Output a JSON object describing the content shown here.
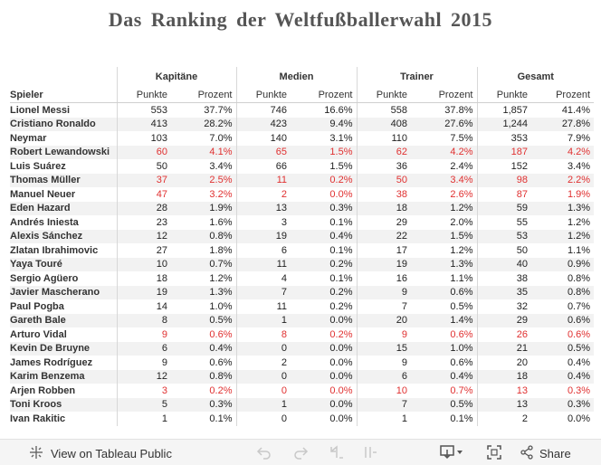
{
  "title": "Das Ranking der Weltfußballerwahl 2015",
  "groups": [
    "Kapitäne",
    "Medien",
    "Trainer",
    "Gesamt"
  ],
  "header": {
    "player_label": "Spieler",
    "points_label": "Punkte",
    "percent_label": "Prozent"
  },
  "colors": {
    "highlight": "#e03030",
    "text": "#333333",
    "band": "#f2f2f2"
  },
  "rows": [
    {
      "name": "Lionel Messi",
      "kp": "553",
      "kpr": "37.7%",
      "mp": "746",
      "mpr": "16.6%",
      "tp": "558",
      "tpr": "37.8%",
      "gp": "1,857",
      "gpr": "41.4%",
      "red": false
    },
    {
      "name": "Cristiano Ronaldo",
      "kp": "413",
      "kpr": "28.2%",
      "mp": "423",
      "mpr": "9.4%",
      "tp": "408",
      "tpr": "27.6%",
      "gp": "1,244",
      "gpr": "27.8%",
      "red": false
    },
    {
      "name": "Neymar",
      "kp": "103",
      "kpr": "7.0%",
      "mp": "140",
      "mpr": "3.1%",
      "tp": "110",
      "tpr": "7.5%",
      "gp": "353",
      "gpr": "7.9%",
      "red": false
    },
    {
      "name": "Robert Lewandowski",
      "kp": "60",
      "kpr": "4.1%",
      "mp": "65",
      "mpr": "1.5%",
      "tp": "62",
      "tpr": "4.2%",
      "gp": "187",
      "gpr": "4.2%",
      "red": true
    },
    {
      "name": "Luis Suárez",
      "kp": "50",
      "kpr": "3.4%",
      "mp": "66",
      "mpr": "1.5%",
      "tp": "36",
      "tpr": "2.4%",
      "gp": "152",
      "gpr": "3.4%",
      "red": false
    },
    {
      "name": "Thomas Müller",
      "kp": "37",
      "kpr": "2.5%",
      "mp": "11",
      "mpr": "0.2%",
      "tp": "50",
      "tpr": "3.4%",
      "gp": "98",
      "gpr": "2.2%",
      "red": true
    },
    {
      "name": "Manuel Neuer",
      "kp": "47",
      "kpr": "3.2%",
      "mp": "2",
      "mpr": "0.0%",
      "tp": "38",
      "tpr": "2.6%",
      "gp": "87",
      "gpr": "1.9%",
      "red": true
    },
    {
      "name": "Eden Hazard",
      "kp": "28",
      "kpr": "1.9%",
      "mp": "13",
      "mpr": "0.3%",
      "tp": "18",
      "tpr": "1.2%",
      "gp": "59",
      "gpr": "1.3%",
      "red": false
    },
    {
      "name": "Andrés Iniesta",
      "kp": "23",
      "kpr": "1.6%",
      "mp": "3",
      "mpr": "0.1%",
      "tp": "29",
      "tpr": "2.0%",
      "gp": "55",
      "gpr": "1.2%",
      "red": false
    },
    {
      "name": "Alexis Sánchez",
      "kp": "12",
      "kpr": "0.8%",
      "mp": "19",
      "mpr": "0.4%",
      "tp": "22",
      "tpr": "1.5%",
      "gp": "53",
      "gpr": "1.2%",
      "red": false
    },
    {
      "name": "Zlatan Ibrahimovic",
      "kp": "27",
      "kpr": "1.8%",
      "mp": "6",
      "mpr": "0.1%",
      "tp": "17",
      "tpr": "1.2%",
      "gp": "50",
      "gpr": "1.1%",
      "red": false
    },
    {
      "name": "Yaya Touré",
      "kp": "10",
      "kpr": "0.7%",
      "mp": "11",
      "mpr": "0.2%",
      "tp": "19",
      "tpr": "1.3%",
      "gp": "40",
      "gpr": "0.9%",
      "red": false
    },
    {
      "name": "Sergio Agüero",
      "kp": "18",
      "kpr": "1.2%",
      "mp": "4",
      "mpr": "0.1%",
      "tp": "16",
      "tpr": "1.1%",
      "gp": "38",
      "gpr": "0.8%",
      "red": false
    },
    {
      "name": "Javier Mascherano",
      "kp": "19",
      "kpr": "1.3%",
      "mp": "7",
      "mpr": "0.2%",
      "tp": "9",
      "tpr": "0.6%",
      "gp": "35",
      "gpr": "0.8%",
      "red": false
    },
    {
      "name": "Paul Pogba",
      "kp": "14",
      "kpr": "1.0%",
      "mp": "11",
      "mpr": "0.2%",
      "tp": "7",
      "tpr": "0.5%",
      "gp": "32",
      "gpr": "0.7%",
      "red": false
    },
    {
      "name": "Gareth Bale",
      "kp": "8",
      "kpr": "0.5%",
      "mp": "1",
      "mpr": "0.0%",
      "tp": "20",
      "tpr": "1.4%",
      "gp": "29",
      "gpr": "0.6%",
      "red": false
    },
    {
      "name": "Arturo Vidal",
      "kp": "9",
      "kpr": "0.6%",
      "mp": "8",
      "mpr": "0.2%",
      "tp": "9",
      "tpr": "0.6%",
      "gp": "26",
      "gpr": "0.6%",
      "red": true
    },
    {
      "name": "Kevin De Bruyne",
      "kp": "6",
      "kpr": "0.4%",
      "mp": "0",
      "mpr": "0.0%",
      "tp": "15",
      "tpr": "1.0%",
      "gp": "21",
      "gpr": "0.5%",
      "red": false
    },
    {
      "name": "James Rodríguez",
      "kp": "9",
      "kpr": "0.6%",
      "mp": "2",
      "mpr": "0.0%",
      "tp": "9",
      "tpr": "0.6%",
      "gp": "20",
      "gpr": "0.4%",
      "red": false
    },
    {
      "name": "Karim Benzema",
      "kp": "12",
      "kpr": "0.8%",
      "mp": "0",
      "mpr": "0.0%",
      "tp": "6",
      "tpr": "0.4%",
      "gp": "18",
      "gpr": "0.4%",
      "red": false
    },
    {
      "name": "Arjen Robben",
      "kp": "3",
      "kpr": "0.2%",
      "mp": "0",
      "mpr": "0.0%",
      "tp": "10",
      "tpr": "0.7%",
      "gp": "13",
      "gpr": "0.3%",
      "red": true
    },
    {
      "name": "Toni Kroos",
      "kp": "5",
      "kpr": "0.3%",
      "mp": "1",
      "mpr": "0.0%",
      "tp": "7",
      "tpr": "0.5%",
      "gp": "13",
      "gpr": "0.3%",
      "red": false
    },
    {
      "name": "Ivan Rakitic",
      "kp": "1",
      "kpr": "0.1%",
      "mp": "0",
      "mpr": "0.0%",
      "tp": "1",
      "tpr": "0.1%",
      "gp": "2",
      "gpr": "0.0%",
      "red": false
    }
  ],
  "footer": {
    "view_label": "View on Tableau Public",
    "share_label": "Share",
    "icons": [
      "tableau-logo-icon",
      "undo-icon",
      "redo-icon",
      "revert-icon",
      "pause-icon",
      "download-icon",
      "fullscreen-icon",
      "share-icon"
    ]
  }
}
